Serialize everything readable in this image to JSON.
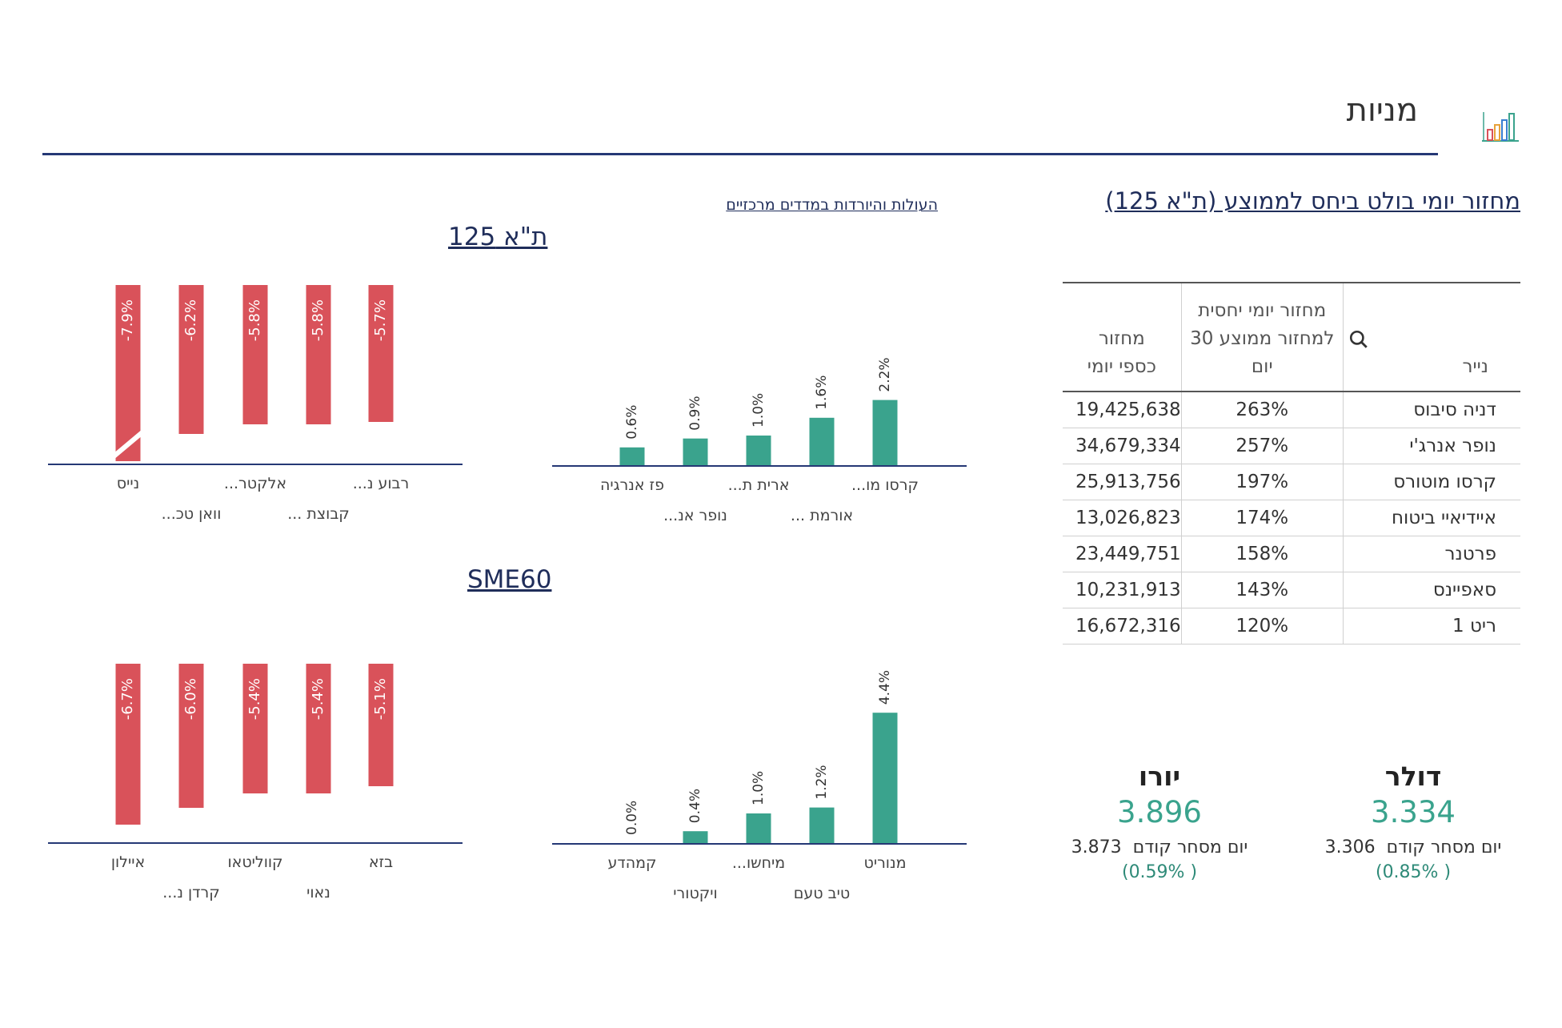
{
  "header": {
    "title": "מניות",
    "icon": "bar-chart-icon"
  },
  "turnover": {
    "title": "מחזור יומי בולט ביחס לממוצע (ת\"א 125)",
    "columns": [
      "נייר",
      "מחזור יומי יחסית למחזור ממוצע 30 יום",
      "מחזור כספי יומי"
    ],
    "rows": [
      {
        "name": "דניה סיבוס",
        "ratio": "263%",
        "value": "19,425,638"
      },
      {
        "name": "נופר אנרג'י",
        "ratio": "257%",
        "value": "34,679,334"
      },
      {
        "name": "קרסו מוטורס",
        "ratio": "197%",
        "value": "25,913,756"
      },
      {
        "name": "איידיאיי ביטוח",
        "ratio": "174%",
        "value": "13,026,823"
      },
      {
        "name": "פרטנר",
        "ratio": "158%",
        "value": "23,449,751"
      },
      {
        "name": "סאפיינס",
        "ratio": "143%",
        "value": "10,231,913"
      },
      {
        "name": "ריט 1",
        "ratio": "120%",
        "value": "16,672,316"
      }
    ]
  },
  "charts_link": "העולות והיורדות במדדים מרכזיים",
  "currencies": [
    {
      "name": "דולר",
      "rate": "3.334",
      "prev_label": "יום מסחר קודם",
      "prev": "3.306",
      "change": "( 0.85%)"
    },
    {
      "name": "יורו",
      "rate": "3.896",
      "prev_label": "יום מסחר קודם",
      "prev": "3.873",
      "change": "( 0.59%)"
    }
  ],
  "colors": {
    "up": "#3aa38d",
    "down": "#d9525a",
    "axis": "#253875",
    "label": "#444444"
  },
  "chart_data": [
    {
      "type": "bar",
      "title": "ת\"א 125",
      "series": [
        {
          "direction": "up",
          "categories": [
            "קרסו מו...",
            "אורמת ...",
            "ארית ת...",
            "נופר אנ...",
            "פז אנרגיה"
          ],
          "values": [
            2.2,
            1.6,
            1.0,
            0.9,
            0.6
          ],
          "labels": [
            "2.2%",
            "1.6%",
            "1.0%",
            "0.9%",
            "0.6%"
          ]
        },
        {
          "direction": "down",
          "categories": [
            "רבוע נ...",
            "קבוצת ...",
            "אלקטר...",
            "וואן טכ...",
            "נייס"
          ],
          "values": [
            -5.7,
            -5.8,
            -5.8,
            -6.2,
            -7.9
          ],
          "labels": [
            "-5.7%",
            "-5.8%",
            "-5.8%",
            "-6.2%",
            "-7.9%"
          ]
        }
      ]
    },
    {
      "type": "bar",
      "title": "SME60",
      "series": [
        {
          "direction": "up",
          "categories": [
            "מנוריט",
            "טיב טעם",
            "מיחשו...",
            "ויקטורי",
            "קמהדע"
          ],
          "values": [
            4.4,
            1.2,
            1.0,
            0.4,
            0.0
          ],
          "labels": [
            "4.4%",
            "1.2%",
            "1.0%",
            "0.4%",
            "0.0%"
          ]
        },
        {
          "direction": "down",
          "categories": [
            "בזא",
            "נאוי",
            "קווליטאו",
            "קרדן נ...",
            "איילון"
          ],
          "values": [
            -5.1,
            -5.4,
            -5.4,
            -6.0,
            -6.7
          ],
          "labels": [
            "-5.1%",
            "-5.4%",
            "-5.4%",
            "-6.0%",
            "-6.7%"
          ]
        }
      ]
    }
  ]
}
